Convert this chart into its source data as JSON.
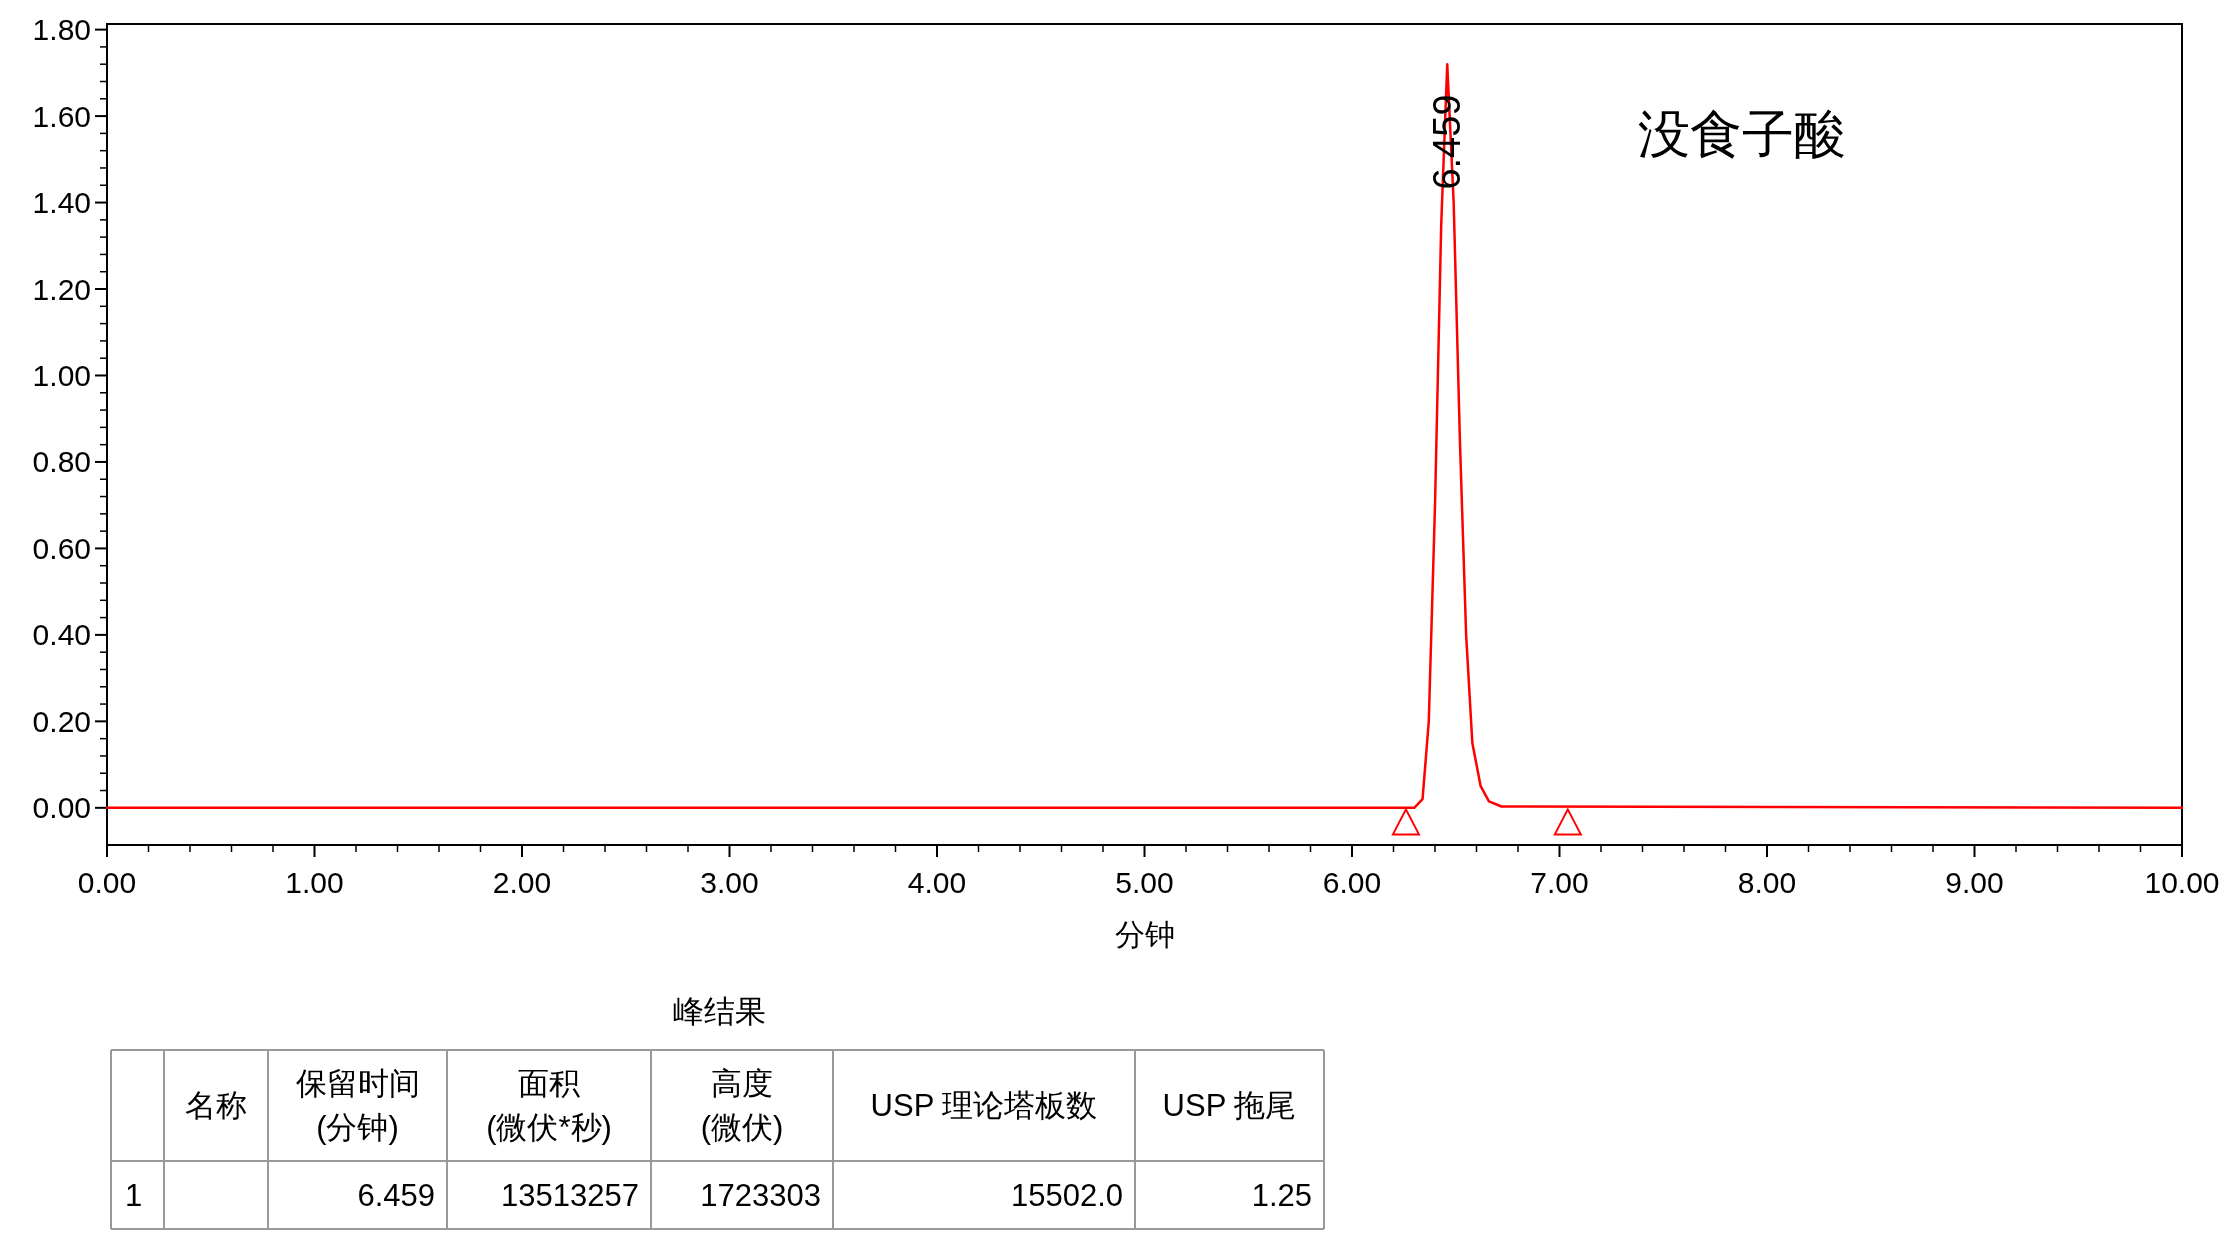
{
  "chart_data": [
    {
      "type": "line",
      "xlabel": "分钟",
      "xlim": [
        0,
        10
      ],
      "ylim": [
        -0.086,
        1.813
      ],
      "grid": false,
      "xticks": [
        {
          "value": 0,
          "label": "0.00"
        },
        {
          "value": 1,
          "label": "1.00"
        },
        {
          "value": 2,
          "label": "2.00"
        },
        {
          "value": 3,
          "label": "3.00"
        },
        {
          "value": 4,
          "label": "4.00"
        },
        {
          "value": 5,
          "label": "5.00"
        },
        {
          "value": 6,
          "label": "6.00"
        },
        {
          "value": 7,
          "label": "7.00"
        },
        {
          "value": 8,
          "label": "8.00"
        },
        {
          "value": 9,
          "label": "9.00"
        },
        {
          "value": 10,
          "label": "10.00"
        }
      ],
      "yticks": [
        {
          "value": 0,
          "label": "0.00"
        },
        {
          "value": 0.2,
          "label": "0.20"
        },
        {
          "value": 0.4,
          "label": "0.40"
        },
        {
          "value": 0.6,
          "label": "0.60"
        },
        {
          "value": 0.8,
          "label": "0.80"
        },
        {
          "value": 1,
          "label": "1.00"
        },
        {
          "value": 1.2,
          "label": "1.20"
        },
        {
          "value": 1.4,
          "label": "1.40"
        },
        {
          "value": 1.6,
          "label": "1.60"
        },
        {
          "value": 1.8,
          "label": "1.80"
        }
      ],
      "series": [
        {
          "type": "line",
          "color": "#ff0000",
          "marker": "none",
          "line_style": "solid",
          "x": [
            0,
            6.3,
            6.34,
            6.37,
            6.4,
            6.43,
            6.459,
            6.49,
            6.52,
            6.55,
            6.58,
            6.62,
            6.66,
            6.72,
            10
          ],
          "values": [
            0,
            0,
            0.02,
            0.2,
            0.7,
            1.35,
            1.72,
            1.4,
            0.85,
            0.4,
            0.15,
            0.05,
            0.015,
            0.003,
            0
          ]
        },
        {
          "type": "scatter",
          "color": "#ff0000",
          "marker": "triangle",
          "x": [
            6.26,
            7.04
          ],
          "values": [
            -0.036,
            -0.036
          ]
        }
      ],
      "annotations": [
        {
          "text": "6.459",
          "x": 6.459,
          "y": 1.54
        },
        "没食子酸"
      ]
    },
    {
      "type": "other",
      "title": "峰结果",
      "categories": [
        null,
        "名称",
        "保留时间\n(分钟)",
        "面积\n(微伏*秒)",
        "高度\n(微伏)",
        "USP 理论塔板数",
        "USP 拖尾"
      ],
      "cell_labels": [
        [
          "1",
          null,
          "6.459",
          "13513257",
          "1723303",
          "15502.0",
          "1.25"
        ]
      ]
    }
  ]
}
